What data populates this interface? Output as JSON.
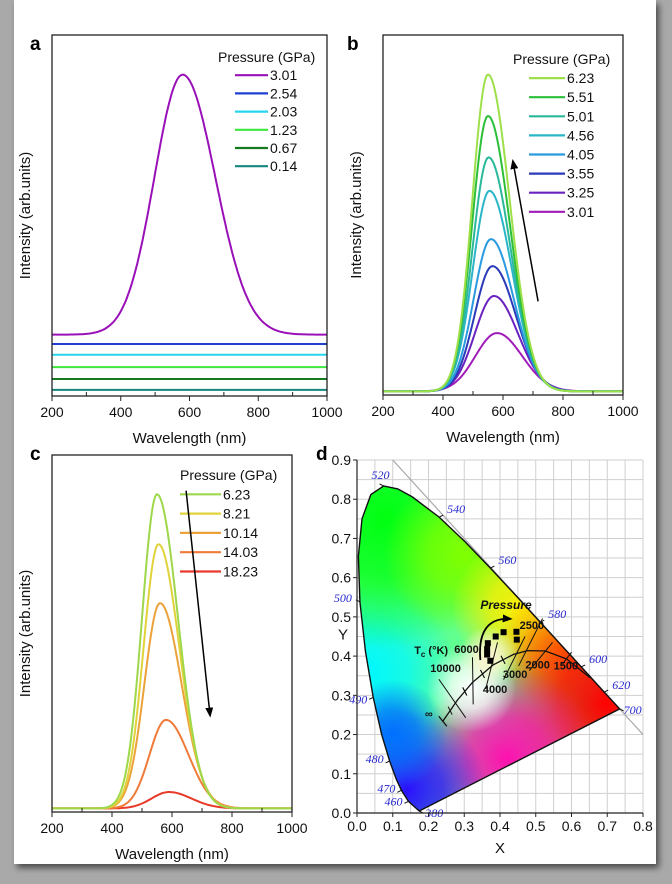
{
  "chart_data": [
    {
      "type": "line",
      "panel": "a",
      "xlabel": "Wavelength (nm)",
      "ylabel": "Intensity (arb.units)",
      "xlim": [
        200,
        1000
      ],
      "ylim": [
        0,
        1
      ],
      "x_ticks": [
        "200",
        "400",
        "600",
        "800",
        "1000"
      ],
      "legend_title": "Pressure (GPa)",
      "legend_placement": "top-right",
      "series": [
        {
          "label": "3.01",
          "color": "#9a10b8",
          "baseline": 0.17,
          "amplitude": 0.72,
          "peak_nm": 580,
          "sigma_left": 82,
          "sigma_right": 95
        },
        {
          "label": "2.54",
          "color": "#1f3fd0",
          "baseline": 0.144,
          "amplitude": 0,
          "peak_nm": 580,
          "sigma_left": 80,
          "sigma_right": 80
        },
        {
          "label": "2.03",
          "color": "#27d6ee",
          "baseline": 0.114,
          "amplitude": 0,
          "peak_nm": 580,
          "sigma_left": 80,
          "sigma_right": 80
        },
        {
          "label": "1.23",
          "color": "#3ee83e",
          "baseline": 0.08,
          "amplitude": 0,
          "peak_nm": 580,
          "sigma_left": 80,
          "sigma_right": 80
        },
        {
          "label": "0.67",
          "color": "#167a1e",
          "baseline": 0.047,
          "amplitude": 0,
          "peak_nm": 580,
          "sigma_left": 80,
          "sigma_right": 80
        },
        {
          "label": "0.14",
          "color": "#17867e",
          "baseline": 0.017,
          "amplitude": 0,
          "peak_nm": 580,
          "sigma_left": 80,
          "sigma_right": 80
        }
      ]
    },
    {
      "type": "line",
      "panel": "b",
      "xlabel": "Wavelength (nm)",
      "ylabel": "Intensity (arb.units)",
      "xlim": [
        200,
        1000
      ],
      "ylim": [
        0,
        1
      ],
      "x_ticks": [
        "200",
        "400",
        "600",
        "800",
        "1000"
      ],
      "legend_title": "Pressure (GPa)",
      "legend_placement": "top-right",
      "arrow": {
        "from": [
          717,
          0.26
        ],
        "to": [
          633,
          0.65
        ]
      },
      "series": [
        {
          "label": "6.23",
          "color": "#9ee04a",
          "baseline": 0.01,
          "amplitude": 0.88,
          "peak_nm": 550,
          "sigma_left": 52,
          "sigma_right": 72
        },
        {
          "label": "5.51",
          "color": "#2cbf3a",
          "baseline": 0.01,
          "amplitude": 0.765,
          "peak_nm": 550,
          "sigma_left": 53,
          "sigma_right": 73
        },
        {
          "label": "5.01",
          "color": "#2ab89a",
          "baseline": 0.01,
          "amplitude": 0.65,
          "peak_nm": 552,
          "sigma_left": 54,
          "sigma_right": 74
        },
        {
          "label": "4.56",
          "color": "#2ab5c8",
          "baseline": 0.01,
          "amplitude": 0.557,
          "peak_nm": 555,
          "sigma_left": 56,
          "sigma_right": 75
        },
        {
          "label": "4.05",
          "color": "#2a9ae0",
          "baseline": 0.01,
          "amplitude": 0.423,
          "peak_nm": 560,
          "sigma_left": 58,
          "sigma_right": 76
        },
        {
          "label": "3.55",
          "color": "#2a3ab8",
          "baseline": 0.01,
          "amplitude": 0.348,
          "peak_nm": 565,
          "sigma_left": 60,
          "sigma_right": 78
        },
        {
          "label": "3.25",
          "color": "#6a22c0",
          "baseline": 0.01,
          "amplitude": 0.265,
          "peak_nm": 570,
          "sigma_left": 64,
          "sigma_right": 80
        },
        {
          "label": "3.01",
          "color": "#a01cb8",
          "baseline": 0.01,
          "amplitude": 0.162,
          "peak_nm": 580,
          "sigma_left": 72,
          "sigma_right": 84
        }
      ]
    },
    {
      "type": "line",
      "panel": "c",
      "xlabel": "Wavelength (nm)",
      "ylabel": "Intensity (arb.units)",
      "xlim": [
        200,
        1000
      ],
      "ylim": [
        0,
        1
      ],
      "x_ticks": [
        "200",
        "400",
        "600",
        "800",
        "1000"
      ],
      "legend_title": "Pressure (GPa)",
      "legend_placement": "top-right",
      "arrow": {
        "from": [
          647,
          0.9
        ],
        "to": [
          727,
          0.27
        ]
      },
      "series": [
        {
          "label": "6.23",
          "color": "#9ed84a",
          "baseline": 0.01,
          "amplitude": 0.88,
          "peak_nm": 550,
          "sigma_left": 50,
          "sigma_right": 70
        },
        {
          "label": "8.21",
          "color": "#e0d23a",
          "baseline": 0.01,
          "amplitude": 0.74,
          "peak_nm": 555,
          "sigma_left": 50,
          "sigma_right": 70
        },
        {
          "label": "10.14",
          "color": "#eca23a",
          "baseline": 0.01,
          "amplitude": 0.575,
          "peak_nm": 560,
          "sigma_left": 52,
          "sigma_right": 72
        },
        {
          "label": "14.03",
          "color": "#f07a38",
          "baseline": 0.01,
          "amplitude": 0.248,
          "peak_nm": 580,
          "sigma_left": 55,
          "sigma_right": 75
        },
        {
          "label": "18.23",
          "color": "#e83a2a",
          "baseline": 0.01,
          "amplitude": 0.046,
          "peak_nm": 590,
          "sigma_left": 58,
          "sigma_right": 75
        }
      ]
    },
    {
      "type": "scatter",
      "panel": "d",
      "xlabel": "X",
      "ylabel": "Y",
      "xlim": [
        0,
        0.8
      ],
      "ylim": [
        0,
        0.9
      ],
      "x_ticks": [
        "0.0",
        "0.1",
        "0.2",
        "0.3",
        "0.4",
        "0.5",
        "0.6",
        "0.7",
        "0.8"
      ],
      "y_ticks": [
        "0.0",
        "0.1",
        "0.2",
        "0.3",
        "0.4",
        "0.5",
        "0.6",
        "0.7",
        "0.8",
        "0.9"
      ],
      "grid": true,
      "spectral_locus": [
        {
          "nm": "380",
          "x": 0.1741,
          "y": 0.005
        },
        {
          "nm": "460",
          "x": 0.144,
          "y": 0.0297
        },
        {
          "nm": "470",
          "x": 0.1241,
          "y": 0.0578
        },
        {
          "nm": "475",
          "x": 0.1096,
          "y": 0.0868
        },
        {
          "nm": "480",
          "x": 0.0913,
          "y": 0.1327
        },
        {
          "nm": "485",
          "x": 0.0687,
          "y": 0.2007
        },
        {
          "nm": "490",
          "x": 0.0454,
          "y": 0.295
        },
        {
          "nm": "495",
          "x": 0.0235,
          "y": 0.4127
        },
        {
          "nm": "500",
          "x": 0.0082,
          "y": 0.5384
        },
        {
          "nm": "505",
          "x": 0.0039,
          "y": 0.6548
        },
        {
          "nm": "510",
          "x": 0.0139,
          "y": 0.7502
        },
        {
          "nm": "515",
          "x": 0.0389,
          "y": 0.812
        },
        {
          "nm": "520",
          "x": 0.0743,
          "y": 0.8338
        },
        {
          "nm": "525",
          "x": 0.1142,
          "y": 0.8262
        },
        {
          "nm": "530",
          "x": 0.1547,
          "y": 0.8059
        },
        {
          "nm": "540",
          "x": 0.2296,
          "y": 0.7543
        },
        {
          "nm": "550",
          "x": 0.3016,
          "y": 0.6923
        },
        {
          "nm": "560",
          "x": 0.3731,
          "y": 0.6245
        },
        {
          "nm": "570",
          "x": 0.4441,
          "y": 0.5547
        },
        {
          "nm": "580",
          "x": 0.5125,
          "y": 0.4866
        },
        {
          "nm": "590",
          "x": 0.5752,
          "y": 0.4242
        },
        {
          "nm": "600",
          "x": 0.627,
          "y": 0.3725
        },
        {
          "nm": "620",
          "x": 0.6915,
          "y": 0.3083
        },
        {
          "nm": "700",
          "x": 0.7347,
          "y": 0.2653
        }
      ],
      "wavelength_labels": [
        "380",
        "460",
        "470",
        "480",
        "490",
        "500",
        "520",
        "540",
        "560",
        "580",
        "600",
        "620",
        "700"
      ],
      "planckian_locus": [
        {
          "T": "∞",
          "x": 0.24,
          "y": 0.234
        },
        {
          "T": "10000",
          "x": 0.281,
          "y": 0.288
        },
        {
          "T": "6000",
          "x": 0.322,
          "y": 0.332
        },
        {
          "T": "4000",
          "x": 0.38,
          "y": 0.377
        },
        {
          "T": "3000",
          "x": 0.437,
          "y": 0.404
        },
        {
          "T": "2500",
          "x": 0.477,
          "y": 0.414
        },
        {
          "T": "2000",
          "x": 0.527,
          "y": 0.413
        },
        {
          "T": "1500",
          "x": 0.586,
          "y": 0.393
        },
        {
          "T": "1000",
          "x": 0.652,
          "y": 0.345
        }
      ],
      "temperature_labels": [
        "∞",
        "10000",
        "6000",
        "4000",
        "3000",
        "2500",
        "2000",
        "1500"
      ],
      "tc_label": {
        "symbol": "T",
        "subscript": "c",
        "unit": " (°K)"
      },
      "annotation": "Pressure",
      "points": [
        {
          "x": 0.373,
          "y": 0.388
        },
        {
          "x": 0.364,
          "y": 0.404
        },
        {
          "x": 0.364,
          "y": 0.418
        },
        {
          "x": 0.366,
          "y": 0.433
        },
        {
          "x": 0.388,
          "y": 0.45
        },
        {
          "x": 0.41,
          "y": 0.461
        },
        {
          "x": 0.446,
          "y": 0.462
        },
        {
          "x": 0.447,
          "y": 0.442
        }
      ]
    }
  ]
}
